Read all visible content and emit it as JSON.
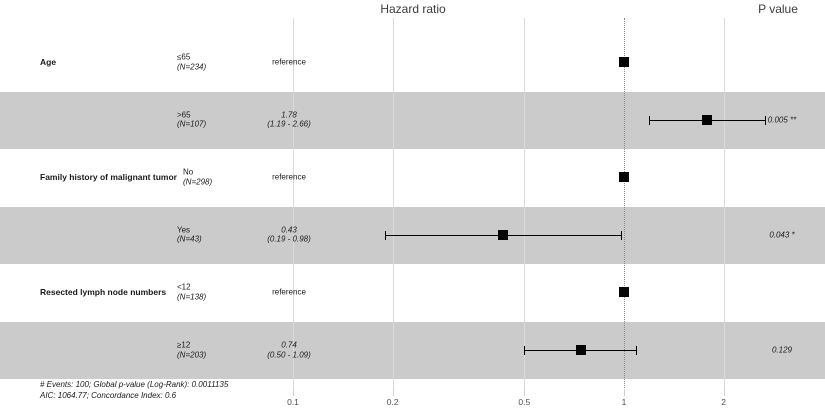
{
  "header": {
    "plot_title": "Hazard ratio",
    "pvalue_title": "P value"
  },
  "footer": {
    "line1": "# Events: 100; Global p-value (Log-Rank): 0.0011135",
    "line2": "AIC: 1064.77; Concordance Index: 0.6"
  },
  "colors": {
    "band": "#cbcbcb",
    "marker": "#050505",
    "gridline": "#dadada",
    "reference_line": "#8a8a8a"
  },
  "chart_data": {
    "type": "forest",
    "title": "Hazard ratio",
    "pvalue_column_title": "P value",
    "x_axis": {
      "scale": "log10",
      "ticks": [
        0.1,
        0.2,
        0.5,
        1,
        2
      ],
      "tick_labels": [
        "0.1",
        "0.2",
        "0.5",
        "1",
        "2"
      ],
      "reference_line": 1,
      "xlim": [
        0.08,
        3.2
      ]
    },
    "rows": [
      {
        "variable": "Age",
        "level": "≤65",
        "n_label": "(N=234)",
        "estimate_label": "reference",
        "hr": 1,
        "reference": true,
        "shaded": false,
        "p_label": ""
      },
      {
        "variable": "",
        "level": ">65",
        "n_label": "(N=107)",
        "estimate_label": "1.78",
        "ci_label": "(1.19 - 2.66)",
        "hr": 1.78,
        "lo": 1.19,
        "hi": 2.66,
        "reference": false,
        "shaded": true,
        "p_label": "0.005 **"
      },
      {
        "variable": "Family history of malignant tumor",
        "level": "No",
        "n_label": "(N=298)",
        "estimate_label": "reference",
        "hr": 1,
        "reference": true,
        "shaded": false,
        "p_label": ""
      },
      {
        "variable": "",
        "level": "Yes",
        "n_label": "(N=43)",
        "estimate_label": "0.43",
        "ci_label": "(0.19 - 0.98)",
        "hr": 0.43,
        "lo": 0.19,
        "hi": 0.98,
        "reference": false,
        "shaded": true,
        "p_label": "0.043 *"
      },
      {
        "variable": "Resected lymph node numbers",
        "level": "<12",
        "n_label": "(N=138)",
        "estimate_label": "reference",
        "hr": 1,
        "reference": true,
        "shaded": false,
        "p_label": ""
      },
      {
        "variable": "",
        "level": "≥12",
        "n_label": "(N=203)",
        "estimate_label": "0.74",
        "ci_label": "(0.50 - 1.09)",
        "hr": 0.74,
        "lo": 0.5,
        "hi": 1.09,
        "reference": false,
        "shaded": true,
        "p_label": "0.129"
      }
    ],
    "footnotes": [
      "# Events: 100; Global p-value (Log-Rank): 0.0011135",
      "AIC: 1064.77; Concordance Index: 0.6"
    ]
  }
}
